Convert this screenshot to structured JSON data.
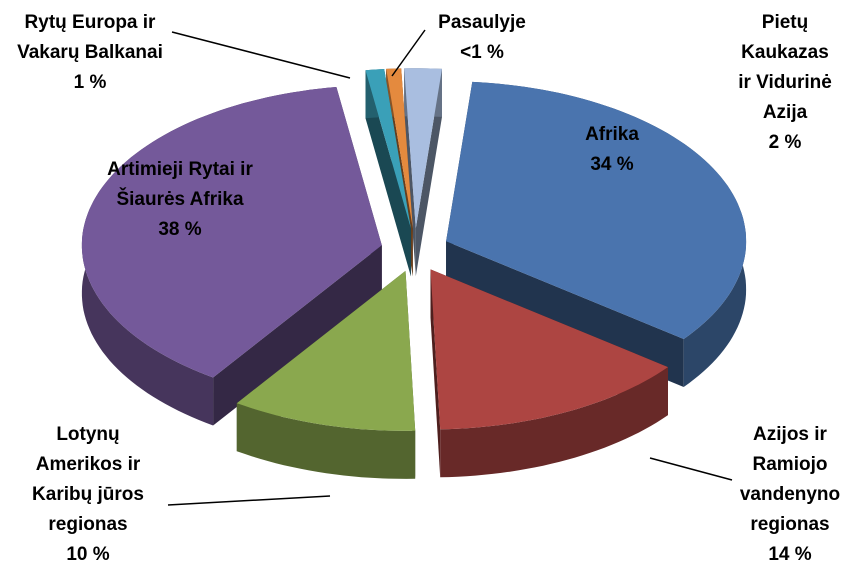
{
  "chart_data": {
    "type": "pie3d",
    "categories": [
      "Afrika",
      "Azijos ir Ramiojo vandenyno regionas",
      "Lotynų Amerikos ir Karibų jūros regionas",
      "Artimieji Rytai ir Šiaurės Afrika",
      "Rytų Europa ir Vakarų Balkanai",
      "Pasaulyje",
      "Pietų Kaukazas ir Vidurinė Azija"
    ],
    "values": [
      34,
      14,
      10,
      38,
      1,
      0.8,
      2
    ],
    "value_labels": [
      "34 %",
      "14 %",
      "10 %",
      "38 %",
      "1 %",
      "<1 %",
      "2 %"
    ],
    "colors": [
      "#4a74ae",
      "#ad4542",
      "#8aa84e",
      "#74599a",
      "#3aa0b8",
      "#e48a3e",
      "#a9bee0"
    ]
  }
}
